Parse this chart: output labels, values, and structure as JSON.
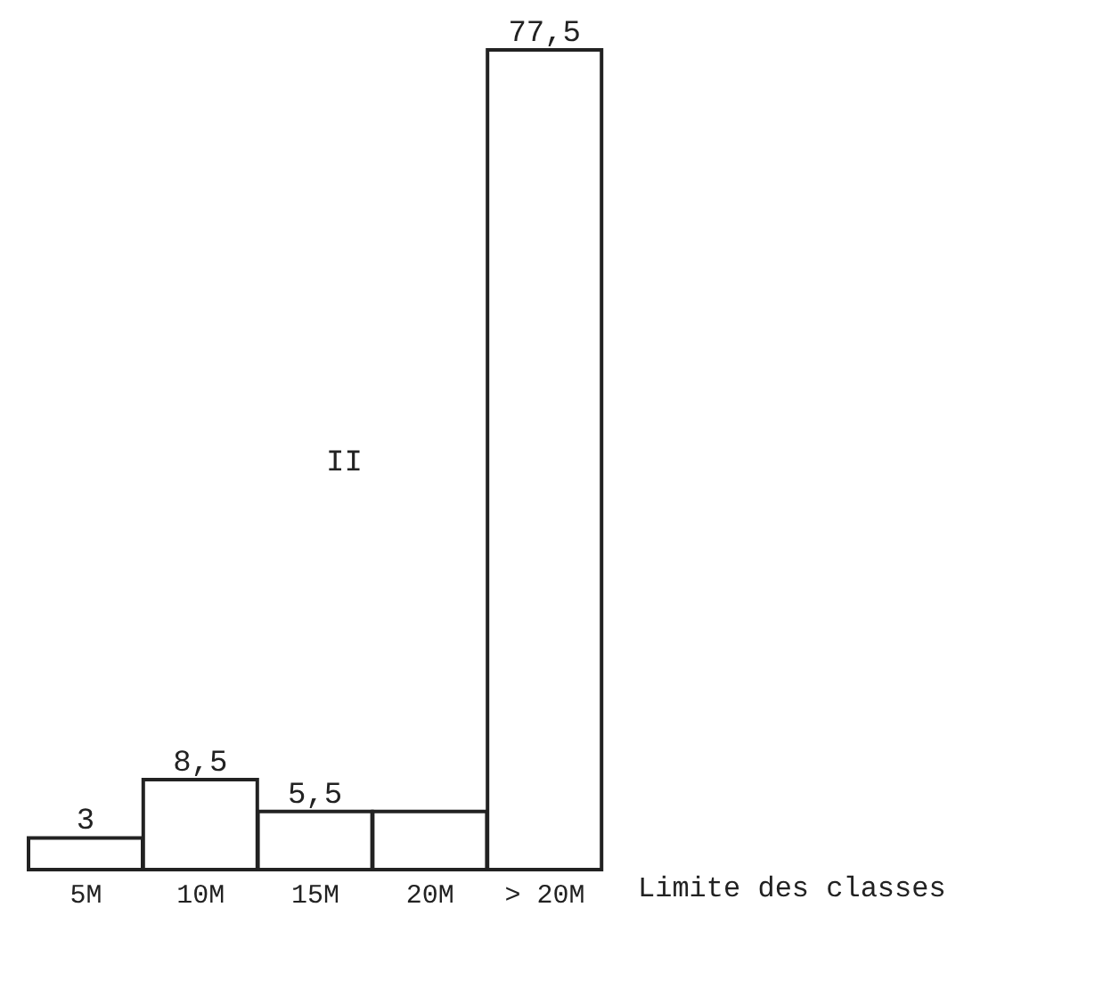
{
  "chart_data": {
    "type": "bar",
    "categories": [
      "5M",
      "10M",
      "15M",
      "20M",
      "> 20M"
    ],
    "values": [
      3,
      8.5,
      5.5,
      5.5,
      77.5
    ],
    "value_labels": [
      "3",
      "8,5",
      "5,5",
      null,
      "77,5"
    ],
    "color": "#ffffff",
    "xlabel": "Limite des classes",
    "annotations": [
      "II"
    ],
    "grid": false,
    "legend": false
  }
}
